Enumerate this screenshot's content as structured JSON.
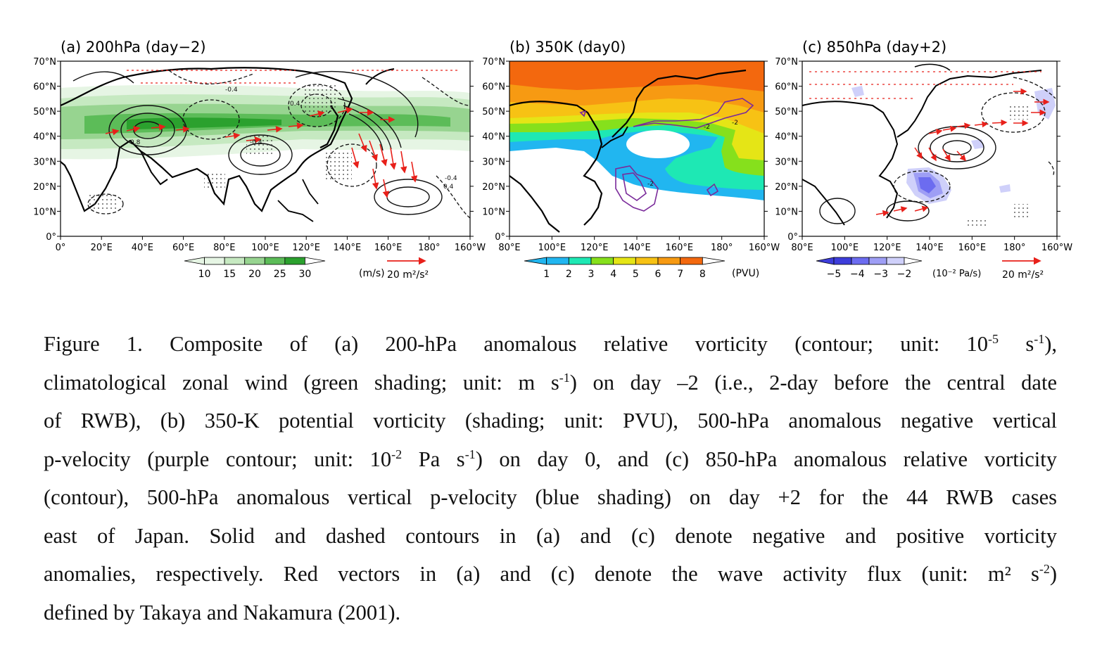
{
  "panels": [
    {
      "title": "(a) 200hPa (day−2)",
      "lat_ticks": [
        "70°N",
        "60°N",
        "50°N",
        "40°N",
        "30°N",
        "20°N",
        "10°N",
        "0°"
      ],
      "lon_ticks": [
        "0°",
        "20°E",
        "40°E",
        "60°E",
        "80°E",
        "100°E",
        "120°E",
        "140°E",
        "160°E",
        "180°",
        "160°W"
      ],
      "colorbar": {
        "ticks": [
          "10",
          "15",
          "20",
          "25",
          "30"
        ],
        "unit": "(m/s)",
        "colors": [
          "#e6f5e4",
          "#c6e9c1",
          "#97d490",
          "#5cbc58",
          "#2ba12e"
        ]
      },
      "vector_ref": "20 m²/s²",
      "contour_labels": [
        "-0.4",
        "0.4",
        "-0.4",
        "0.8",
        "-0.4",
        "0.4"
      ]
    },
    {
      "title": "(b) 350K (day0)",
      "lat_ticks": [
        "70°N",
        "60°N",
        "50°N",
        "40°N",
        "30°N",
        "20°N",
        "10°N",
        "0°"
      ],
      "lon_ticks": [
        "80°E",
        "100°E",
        "120°E",
        "140°E",
        "160°E",
        "180°",
        "160°W"
      ],
      "colorbar": {
        "ticks": [
          "1",
          "2",
          "3",
          "4",
          "5",
          "6",
          "7",
          "8"
        ],
        "unit": "(PVU)",
        "colors": [
          "#21b6f0",
          "#1ee8b4",
          "#86e01c",
          "#e5e516",
          "#f7c214",
          "#f79a12",
          "#f3680e"
        ]
      },
      "contour_labels": [
        "-2",
        "-2",
        "-2"
      ]
    },
    {
      "title": "(c) 850hPa (day+2)",
      "lat_ticks": [
        "70°N",
        "60°N",
        "50°N",
        "40°N",
        "30°N",
        "20°N",
        "10°N",
        "0°"
      ],
      "lon_ticks": [
        "80°E",
        "100°E",
        "120°E",
        "140°E",
        "160°E",
        "180°",
        "160°W"
      ],
      "colorbar": {
        "ticks": [
          "−5",
          "−4",
          "−3",
          "−2"
        ],
        "unit": "(10⁻² Pa/s)",
        "colors": [
          "#3d3ddb",
          "#6c6cf0",
          "#9e9ef5",
          "#cfd0fa"
        ]
      },
      "vector_ref": "20 m²/s²"
    }
  ],
  "caption_lines": [
    {
      "parts": [
        "Figure 1. Composite of (a) 200-hPa anomalous relative vorticity (contour; unit: 10",
        "-5",
        " s",
        "-1",
        "),"
      ]
    },
    {
      "parts": [
        "climatological zonal wind (green shading; unit: m s",
        "-1",
        ") on day –2 (i.e., 2-day before the central date"
      ]
    },
    {
      "parts": [
        "of RWB), (b) 350-K potential vorticity (shading; unit: PVU), 500-hPa anomalous negative vertical"
      ]
    },
    {
      "parts": [
        "p-velocity (purple contour; unit: 10",
        "-2",
        " Pa s",
        "-1",
        ") on day 0, and (c) 850-hPa anomalous relative vorticity"
      ]
    },
    {
      "parts": [
        "(contour), 500-hPa anomalous vertical p-velocity (blue shading) on day +2 for the 44 RWB cases"
      ]
    },
    {
      "parts": [
        "east of Japan. Solid and dashed contours in (a) and (c) denote negative and positive vorticity"
      ]
    },
    {
      "parts": [
        "anomalies, respectively. Red vectors in (a) and (c) denote the wave activity flux (unit: m² s",
        "-2",
        ")"
      ]
    },
    {
      "parts": [
        "defined by Takaya and Nakamura (2001)."
      ]
    }
  ]
}
